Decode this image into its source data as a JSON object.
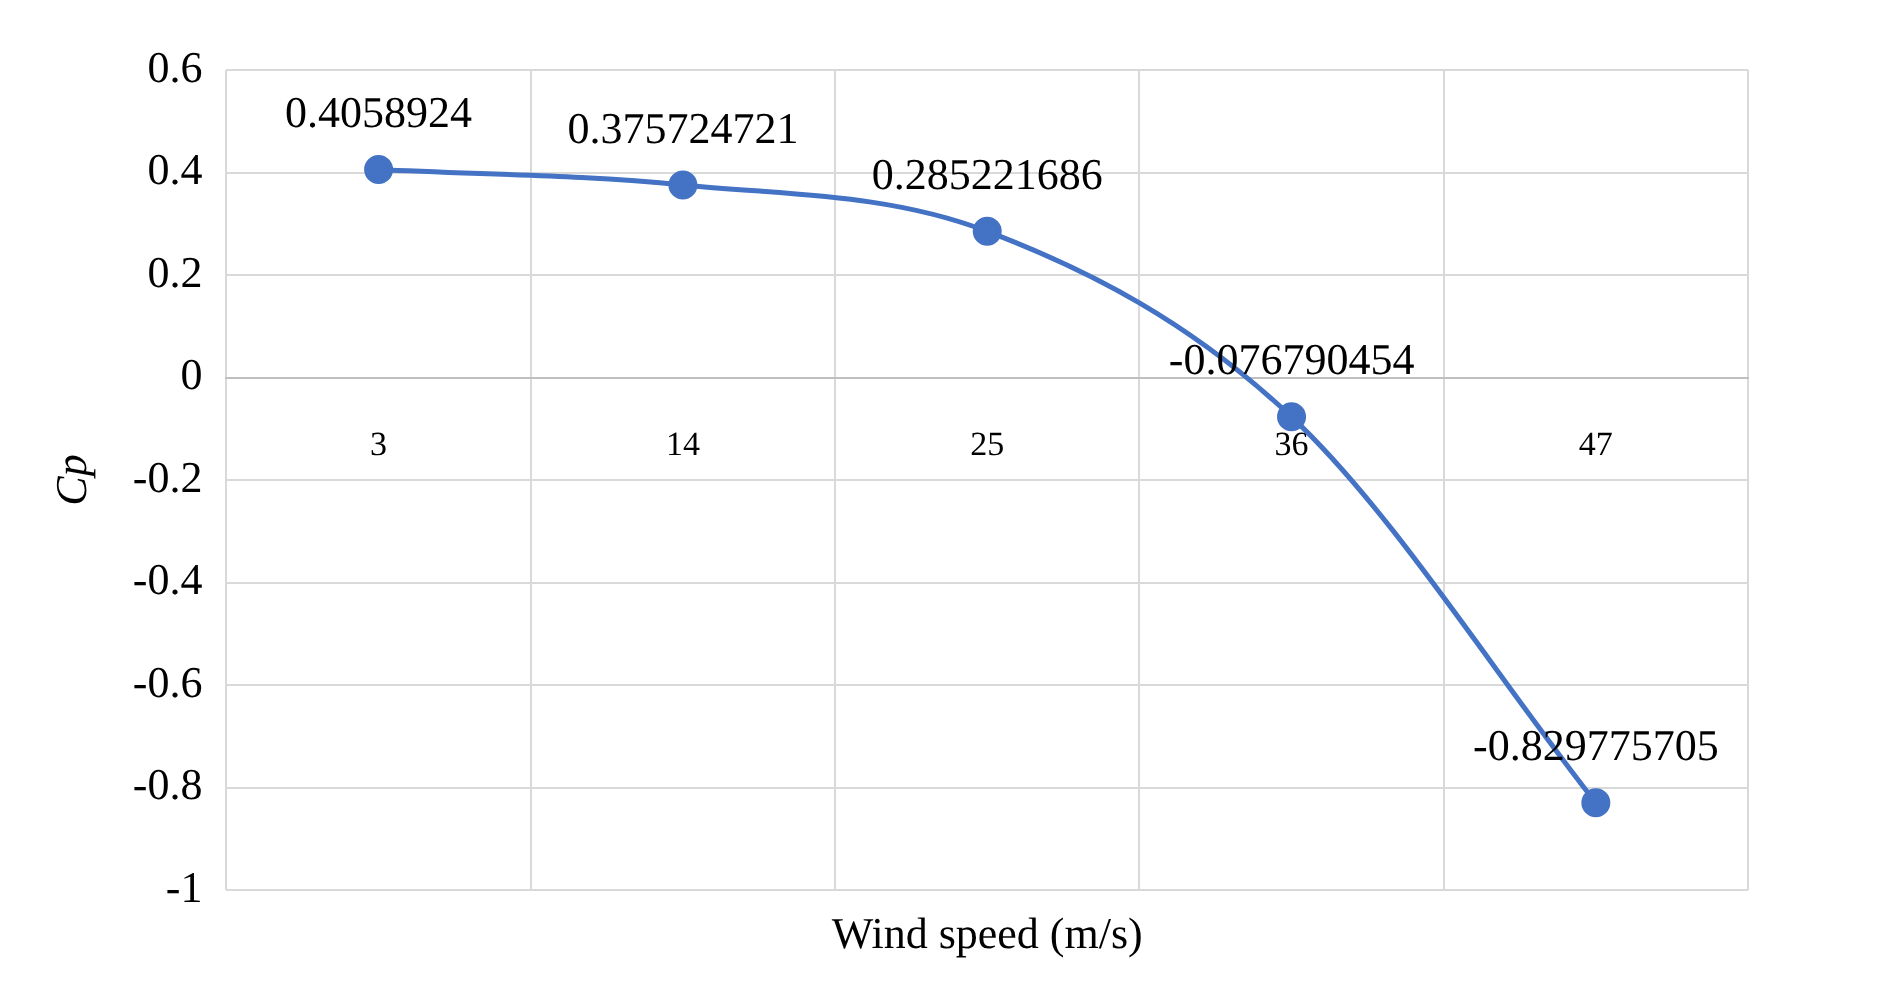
{
  "chart_data": {
    "type": "line",
    "xlabel": "Wind speed (m/s)",
    "ylabel": "Cp",
    "categories": [
      "3",
      "14",
      "25",
      "36",
      "47"
    ],
    "series": [
      {
        "color": "#4472c4",
        "values": [
          0.4058924,
          0.375724721,
          0.285221686,
          -0.076790454,
          -0.829775705
        ]
      }
    ],
    "ylim": [
      -1,
      0.6
    ],
    "yticks": [
      -1,
      -0.8,
      -0.6,
      -0.4,
      -0.2,
      0,
      0.2,
      0.4,
      0.6
    ],
    "grid": true,
    "legend": false,
    "marker": "circle",
    "line_style": "solid",
    "data_labels": true
  }
}
